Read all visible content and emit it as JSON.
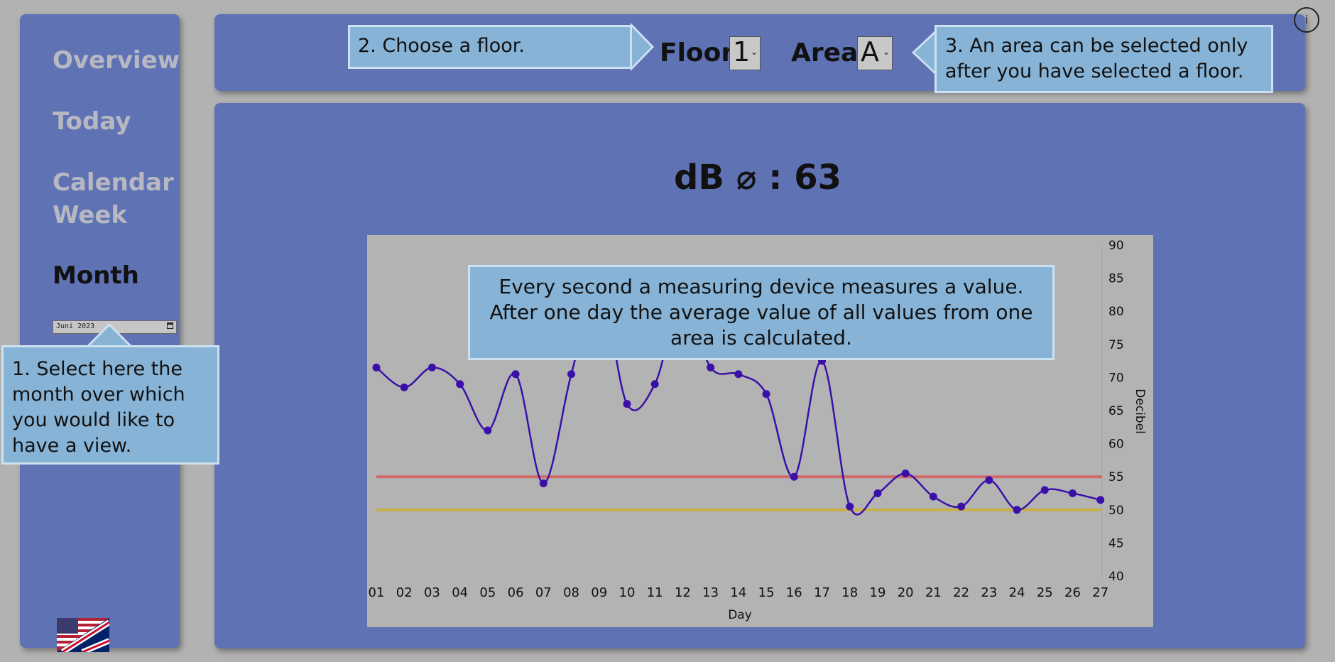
{
  "sidebar": {
    "nav": [
      {
        "label": "Overview"
      },
      {
        "label": "Today"
      },
      {
        "label": "Calendar Week"
      },
      {
        "label": "Month"
      }
    ],
    "month_value": "Juni 2023"
  },
  "callouts": {
    "select_month": "1. Select here the month over which you would like to have a view.",
    "choose_floor": "2. Choose a floor.",
    "choose_area": "3. An area can be selected only after you have selected a floor.",
    "measurement_info": "Every second a measuring device measures a value. After one day the average value of all values from one area is calculated."
  },
  "filters": {
    "floor_label": "Floor:",
    "floor_value": "1",
    "area_label": "Area:",
    "area_value": "A"
  },
  "info_button": "i",
  "summary": {
    "average_label": "dB ⌀ : 63"
  },
  "chart_data": {
    "type": "line",
    "x": [
      "01",
      "02",
      "03",
      "04",
      "05",
      "06",
      "07",
      "08",
      "09",
      "10",
      "11",
      "12",
      "13",
      "14",
      "15",
      "16",
      "17",
      "18",
      "19",
      "20",
      "21",
      "22",
      "23",
      "24",
      "25",
      "26",
      "27"
    ],
    "series": [
      {
        "values": [
          71.5,
          68.5,
          71.5,
          69,
          62,
          70.5,
          54,
          70.5,
          84,
          66,
          69,
          82,
          71.5,
          70.5,
          67.5,
          55,
          72.5,
          50.5,
          52.5,
          55.5,
          52,
          50.5,
          54.5,
          50,
          53,
          52.5,
          51.5
        ]
      }
    ],
    "thresholds": [
      55,
      50
    ],
    "xlabel": "Day",
    "ylabel": "Decibel",
    "ylim": [
      40,
      90
    ],
    "yticks": [
      40,
      45,
      50,
      55,
      60,
      65,
      70,
      75,
      80,
      85,
      90
    ],
    "colors": {
      "line": "#3a10a8",
      "threshold_high": "#d06a6a",
      "threshold_low": "#c8b048",
      "plot_bg": "#b3b3b3"
    }
  }
}
